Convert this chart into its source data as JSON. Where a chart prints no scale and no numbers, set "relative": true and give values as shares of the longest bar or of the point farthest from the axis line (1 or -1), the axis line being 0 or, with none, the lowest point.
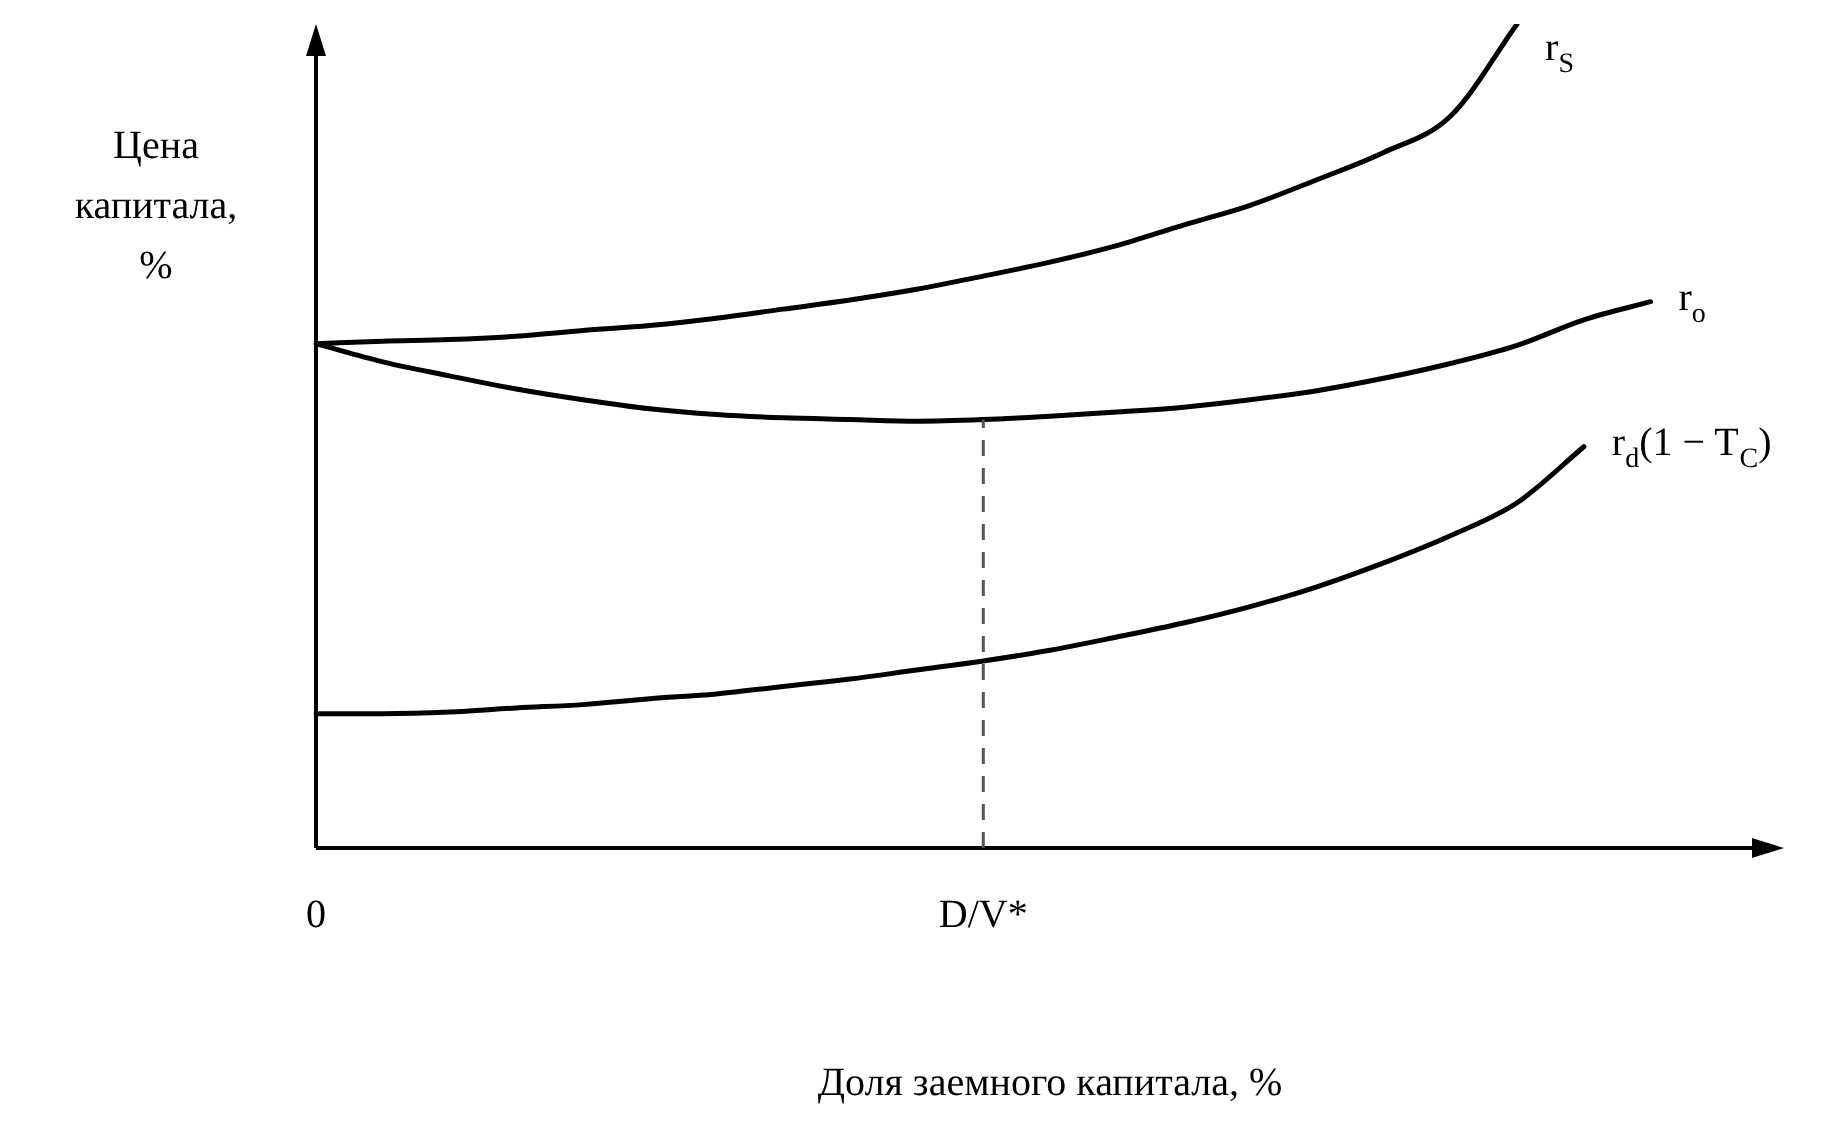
{
  "chart_data": {
    "type": "line",
    "relative": true,
    "xlabel": "Доля заемного капитала, %",
    "ylabel": "Цена капитала, %",
    "categories": [
      "0",
      null,
      null,
      null,
      null,
      null,
      null,
      null,
      null,
      null,
      "D/V*",
      null,
      null,
      null,
      null,
      null,
      null,
      null,
      null,
      null,
      null,
      null,
      null
    ],
    "series": [
      {
        "name": "r$_{S}$",
        "color": "#000000",
        "values": [
          0.612,
          0.615,
          0.617,
          0.621,
          0.628,
          0.634,
          0.643,
          0.654,
          0.665,
          0.678,
          0.694,
          0.711,
          0.731,
          0.756,
          0.78,
          0.811,
          0.844,
          0.888,
          1.0,
          null,
          null,
          null,
          null
        ]
      },
      {
        "name": "r$_{o}$",
        "color": "#000000",
        "values": [
          0.612,
          0.59,
          0.573,
          0.557,
          0.544,
          0.533,
          0.526,
          0.522,
          0.52,
          0.518,
          0.52,
          0.524,
          0.529,
          0.535,
          0.544,
          0.555,
          0.57,
          0.588,
          0.61,
          0.641,
          0.663,
          null,
          null
        ]
      },
      {
        "name": "r$_{d}$(1 − T$_{C}$)",
        "color": "#000000",
        "values": [
          0.163,
          0.163,
          0.165,
          0.17,
          0.174,
          0.181,
          0.187,
          0.196,
          0.205,
          0.216,
          0.227,
          0.24,
          0.256,
          0.273,
          0.293,
          0.317,
          0.346,
          0.379,
          0.419,
          0.487,
          null,
          null,
          null
        ]
      }
    ],
    "ref_lines": [
      {
        "axis": "x",
        "value": "D/V*",
        "line_style": "dashed",
        "color": "#555555"
      }
    ],
    "tick_labels": "x",
    "grid": false,
    "legend": false,
    "marker": "none",
    "line_style": "solid"
  }
}
